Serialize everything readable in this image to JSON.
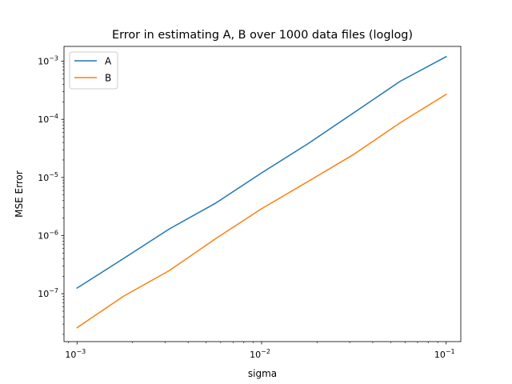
{
  "chart_data": {
    "type": "line",
    "title": "Error in estimating A, B over 1000 data files (loglog)",
    "xlabel": "sigma",
    "ylabel": "MSE Error",
    "xscale": "log",
    "yscale": "log",
    "xlim": [
      0.00085,
      0.12
    ],
    "ylim": [
      1.5e-08,
      0.0018
    ],
    "grid": false,
    "legend_position": "top-left",
    "x_ticks": [
      {
        "value": 0.001,
        "base": "10",
        "exp": "−3"
      },
      {
        "value": 0.01,
        "base": "10",
        "exp": "−2"
      },
      {
        "value": 0.1,
        "base": "10",
        "exp": "−1"
      }
    ],
    "y_ticks": [
      {
        "value": 1e-07,
        "base": "10",
        "exp": "−7"
      },
      {
        "value": 1e-06,
        "base": "10",
        "exp": "−6"
      },
      {
        "value": 1e-05,
        "base": "10",
        "exp": "−5"
      },
      {
        "value": 0.0001,
        "base": "10",
        "exp": "−4"
      },
      {
        "value": 0.001,
        "base": "10",
        "exp": "−3"
      }
    ],
    "x": [
      0.001,
      0.00178,
      0.00316,
      0.00562,
      0.01,
      0.0178,
      0.0316,
      0.0562,
      0.1
    ],
    "series": [
      {
        "name": "A",
        "color": "#1f77b4",
        "values": [
          1.25e-07,
          4e-07,
          1.3e-06,
          3.6e-06,
          1.2e-05,
          3.8e-05,
          0.00013,
          0.00045,
          0.0012
        ]
      },
      {
        "name": "B",
        "color": "#ff7f0e",
        "values": [
          2.6e-08,
          9e-08,
          2.5e-07,
          8.8e-07,
          2.9e-06,
          8.5e-06,
          2.5e-05,
          8.7e-05,
          0.00027
        ]
      }
    ]
  }
}
